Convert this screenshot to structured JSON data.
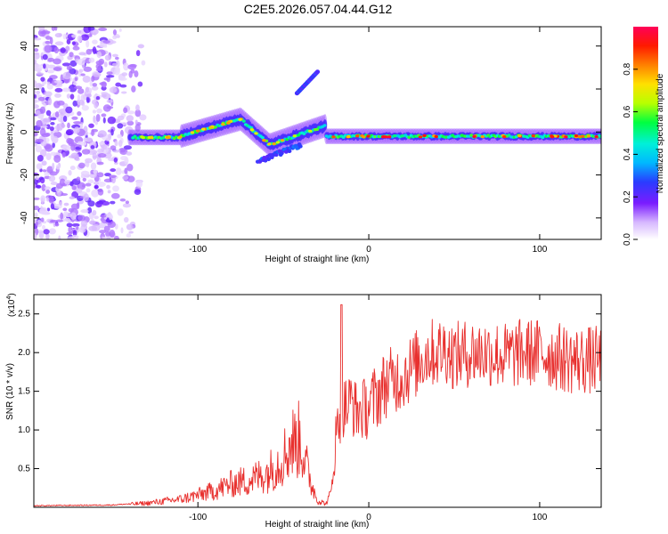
{
  "title": "C2E5.2026.057.04.44.G12",
  "colors": {
    "snr_line": "#e8302e",
    "axis": "#000000"
  },
  "chart_data": [
    {
      "type": "heatmap",
      "xlabel": "Height of straight line (km)",
      "ylabel": "Frequency (Hz)",
      "xlim": [
        -196,
        136
      ],
      "ylim": [
        -50,
        49
      ],
      "xticks": [
        -100,
        0,
        100
      ],
      "yticks": [
        -40,
        -20,
        0,
        20,
        40
      ],
      "xtick_labels": [
        "-100",
        "0",
        "100"
      ],
      "ytick_labels": [
        "-40",
        "-20",
        "0",
        "20",
        "40"
      ],
      "colorbar": {
        "label": "Normalized spectral amplitude",
        "range": [
          0,
          1
        ],
        "ticks": [
          0,
          0.2,
          0.4,
          0.6,
          0.8
        ],
        "tick_labels": [
          "0.0",
          "0.2",
          "0.4",
          "0.6",
          "0.8"
        ]
      },
      "features": [
        {
          "name": "noise-region",
          "x_range": [
            -196,
            -135
          ],
          "f_range": [
            -50,
            49
          ],
          "amplitude": 0.15
        },
        {
          "name": "main-track",
          "x_range": [
            -140,
            136
          ],
          "f_center": -2,
          "amplitude": 0.5
        },
        {
          "name": "upper-branch",
          "x_range": [
            -42,
            -30
          ],
          "f_range": [
            18,
            28
          ],
          "amplitude": 0.2
        },
        {
          "name": "lower-branch",
          "x_range": [
            -65,
            -40
          ],
          "f_range": [
            -14,
            -6
          ],
          "amplitude": 0.2
        }
      ]
    },
    {
      "type": "line",
      "xlabel": "Height of straight line (km)",
      "ylabel": "SNR (10 * v/v)",
      "y_multiplier_label": "(x10",
      "y_multiplier_exp": "4",
      "y_multiplier_close": ")",
      "xlim": [
        -196,
        136
      ],
      "ylim": [
        0,
        2.75
      ],
      "xticks": [
        -100,
        0,
        100
      ],
      "yticks": [
        0.5,
        1.0,
        1.5,
        2.0,
        2.5
      ],
      "xtick_labels": [
        "-100",
        "0",
        "100"
      ],
      "ytick_labels": [
        "0.5",
        "1.0",
        "1.5",
        "2.0",
        "2.5"
      ],
      "series": [
        {
          "name": "SNR",
          "color": "#e8302e",
          "x": [
            -196,
            -150,
            -130,
            -110,
            -100,
            -90,
            -80,
            -70,
            -60,
            -55,
            -50,
            -45,
            -40,
            -35,
            -30,
            -25,
            -22,
            -20,
            -17,
            -15,
            -12,
            -10,
            -8,
            -5,
            0,
            5,
            10,
            15,
            20,
            25,
            30,
            35,
            40,
            45,
            50,
            60,
            70,
            80,
            90,
            100,
            110,
            120,
            130,
            136
          ],
          "y": [
            0.02,
            0.03,
            0.06,
            0.12,
            0.18,
            0.25,
            0.35,
            0.4,
            0.5,
            0.6,
            0.75,
            0.95,
            1.0,
            0.45,
            0.1,
            0.05,
            0.2,
            0.8,
            1.2,
            1.3,
            1.3,
            1.4,
            1.25,
            1.25,
            1.3,
            1.45,
            1.6,
            1.65,
            1.7,
            1.8,
            1.9,
            2.0,
            2.0,
            2.05,
            1.95,
            2.0,
            2.0,
            1.95,
            2.0,
            2.0,
            1.95,
            1.9,
            1.9,
            1.9
          ]
        }
      ]
    }
  ]
}
